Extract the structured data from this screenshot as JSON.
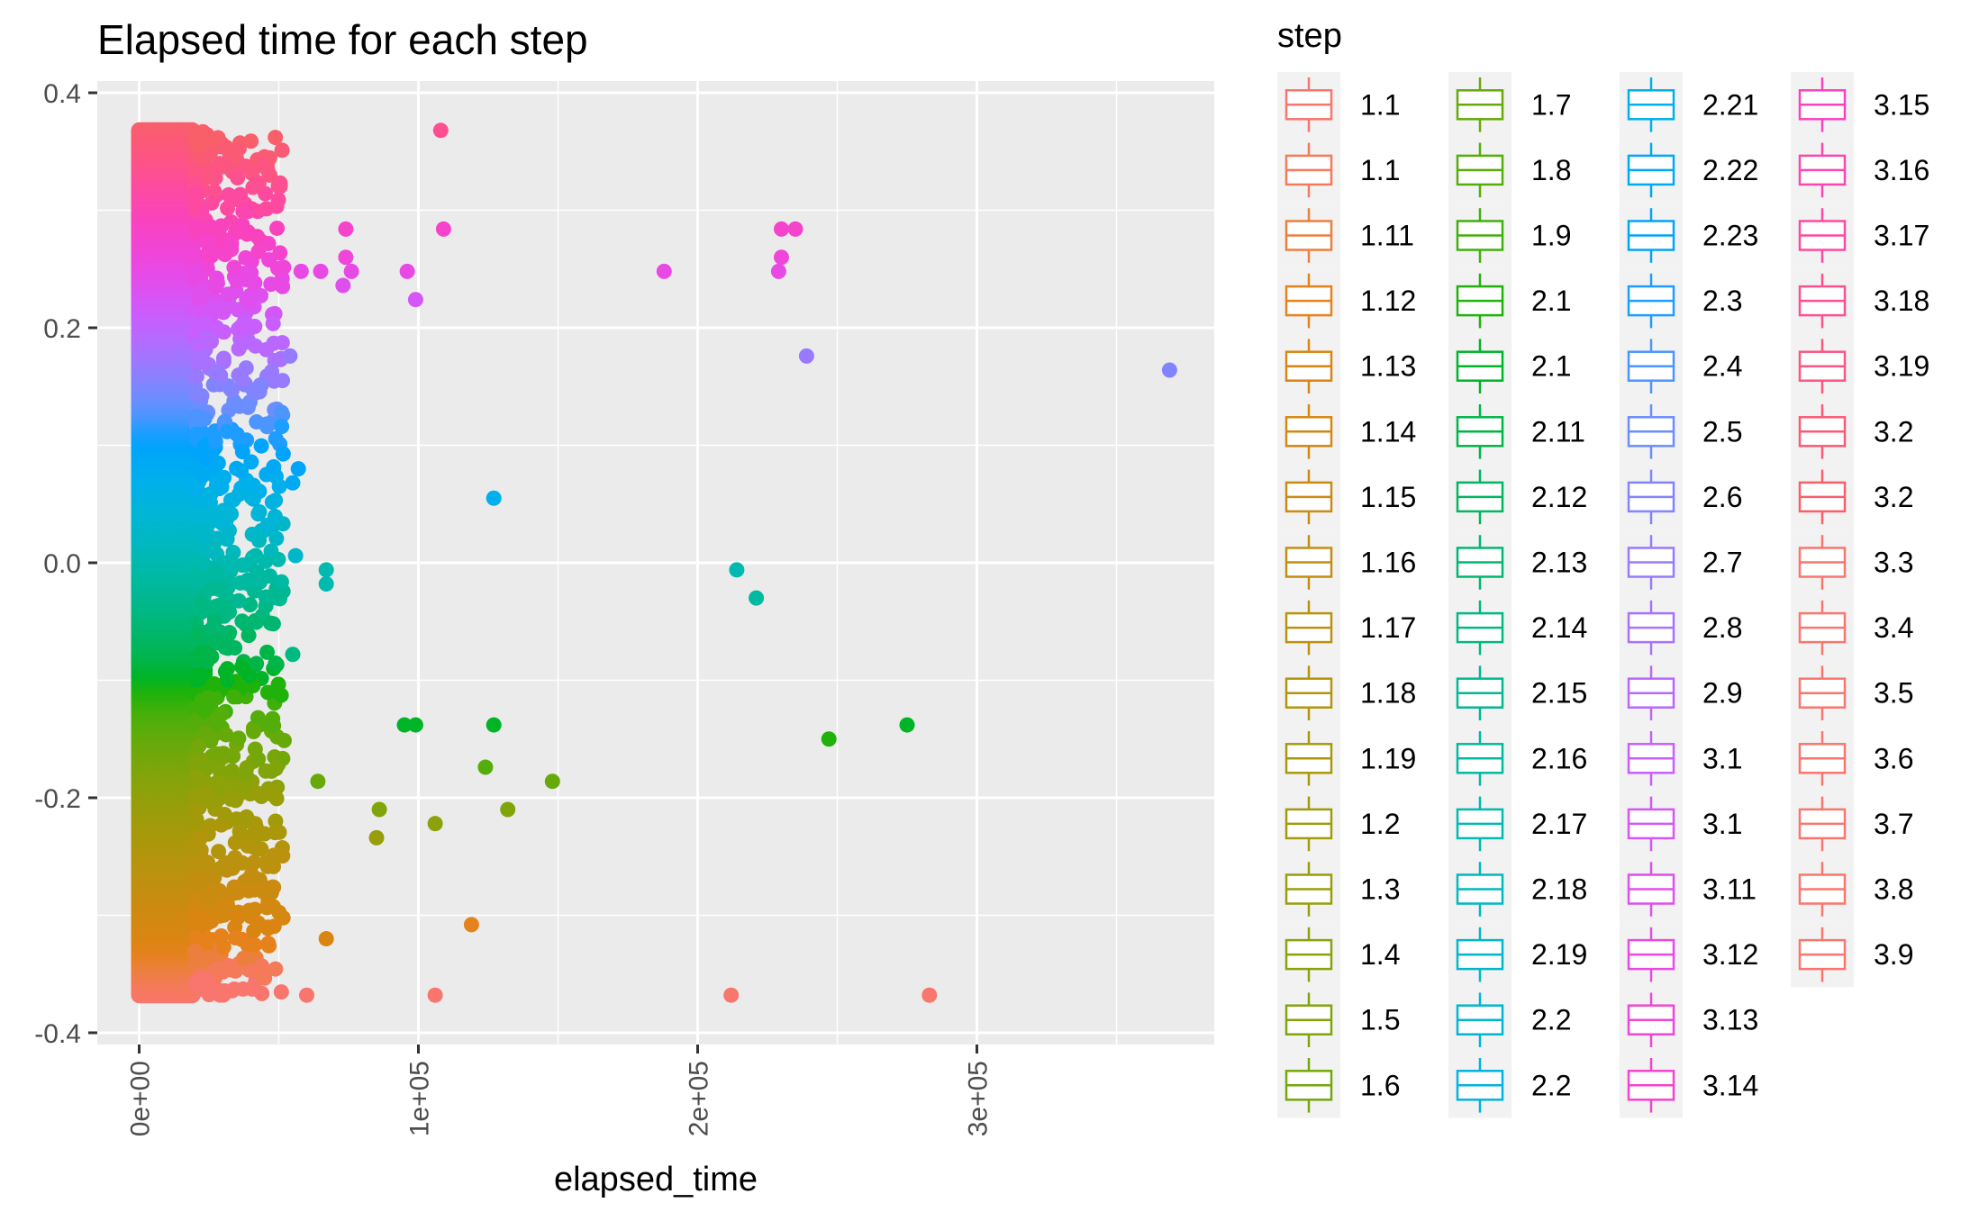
{
  "chart_data": {
    "type": "scatter",
    "title": "Elapsed time for each step",
    "xlabel": "elapsed_time",
    "ylabel": "",
    "xlim": [
      -15000,
      385000
    ],
    "ylim": [
      -0.41,
      0.41
    ],
    "x_ticks": [
      0,
      100000,
      200000,
      300000
    ],
    "x_tick_labels": [
      "0e+00",
      "1e+05",
      "2e+05",
      "3e+05"
    ],
    "y_ticks": [
      -0.4,
      -0.2,
      0.0,
      0.2,
      0.4
    ],
    "y_tick_labels": [
      "-0.4",
      "-0.2",
      "0.0",
      "0.2",
      "0.4"
    ],
    "y_range_of_dense_band": [
      -0.368,
      0.368
    ],
    "grid": true,
    "legend": {
      "title": "step",
      "placement": "right",
      "entries": [
        {
          "label": "1.1",
          "color": "#F8766D"
        },
        {
          "label": "1.1",
          "color": "#F47A5A"
        },
        {
          "label": "1.11",
          "color": "#EC7F3D"
        },
        {
          "label": "1.12",
          "color": "#E5821C"
        },
        {
          "label": "1.13",
          "color": "#DA8512"
        },
        {
          "label": "1.14",
          "color": "#D38811"
        },
        {
          "label": "1.15",
          "color": "#CB8B10"
        },
        {
          "label": "1.16",
          "color": "#C38E10"
        },
        {
          "label": "1.17",
          "color": "#BB920E"
        },
        {
          "label": "1.18",
          "color": "#B3950C"
        },
        {
          "label": "1.19",
          "color": "#AA980A"
        },
        {
          "label": "1.2",
          "color": "#A19B0A"
        },
        {
          "label": "1.3",
          "color": "#979E0A"
        },
        {
          "label": "1.4",
          "color": "#8CA10A"
        },
        {
          "label": "1.5",
          "color": "#81A40A"
        },
        {
          "label": "1.6",
          "color": "#74A70A"
        },
        {
          "label": "1.7",
          "color": "#66AA0A"
        },
        {
          "label": "1.8",
          "color": "#55AD0A"
        },
        {
          "label": "1.9",
          "color": "#3FB00A"
        },
        {
          "label": "2.1",
          "color": "#1FB20A"
        },
        {
          "label": "2.1",
          "color": "#00B428"
        },
        {
          "label": "2.11",
          "color": "#00B547"
        },
        {
          "label": "2.12",
          "color": "#00B65E"
        },
        {
          "label": "2.13",
          "color": "#00B771"
        },
        {
          "label": "2.14",
          "color": "#00B882"
        },
        {
          "label": "2.15",
          "color": "#00B892"
        },
        {
          "label": "2.16",
          "color": "#00B9A1"
        },
        {
          "label": "2.17",
          "color": "#00B9AF"
        },
        {
          "label": "2.18",
          "color": "#00B8BD"
        },
        {
          "label": "2.19",
          "color": "#00B7CA"
        },
        {
          "label": "2.2",
          "color": "#00B5D6"
        },
        {
          "label": "2.2",
          "color": "#00B2E1"
        },
        {
          "label": "2.21",
          "color": "#00AFEB"
        },
        {
          "label": "2.22",
          "color": "#00AAF3"
        },
        {
          "label": "2.23",
          "color": "#00A4FA"
        },
        {
          "label": "2.3",
          "color": "#1C9DFF"
        },
        {
          "label": "2.4",
          "color": "#4C95FF"
        },
        {
          "label": "2.5",
          "color": "#6A8DFF"
        },
        {
          "label": "2.6",
          "color": "#8284FF"
        },
        {
          "label": "2.7",
          "color": "#977AFF"
        },
        {
          "label": "2.8",
          "color": "#A971FF"
        },
        {
          "label": "2.9",
          "color": "#B967FF"
        },
        {
          "label": "3.1",
          "color": "#C75EFD"
        },
        {
          "label": "3.1",
          "color": "#D456F6"
        },
        {
          "label": "3.11",
          "color": "#DF4FEE"
        },
        {
          "label": "3.12",
          "color": "#E849E4"
        },
        {
          "label": "3.13",
          "color": "#EF45D8"
        },
        {
          "label": "3.14",
          "color": "#F543CC"
        },
        {
          "label": "3.15",
          "color": "#F943BE"
        },
        {
          "label": "3.16",
          "color": "#FC46AF"
        },
        {
          "label": "3.17",
          "color": "#FD4AA0"
        },
        {
          "label": "3.18",
          "color": "#FE5091"
        },
        {
          "label": "3.19",
          "color": "#FD5582"
        },
        {
          "label": "3.2",
          "color": "#FB5A75"
        },
        {
          "label": "3.2",
          "color": "#F85F69"
        },
        {
          "label": "3.3",
          "color": "#F8766D"
        },
        {
          "label": "3.4",
          "color": "#F8766D"
        },
        {
          "label": "3.5",
          "color": "#F8766D"
        },
        {
          "label": "3.6",
          "color": "#F8766D"
        },
        {
          "label": "3.7",
          "color": "#F8766D"
        },
        {
          "label": "3.8",
          "color": "#F8766D"
        },
        {
          "label": "3.9",
          "color": "#F8766D"
        }
      ]
    },
    "outliers": [
      {
        "x": 108000,
        "y": 0.368,
        "color": "#FE5091"
      },
      {
        "x": 109000,
        "y": 0.284,
        "color": "#F543CC"
      },
      {
        "x": 74000,
        "y": 0.284,
        "color": "#F543CC"
      },
      {
        "x": 230000,
        "y": 0.284,
        "color": "#F543CC"
      },
      {
        "x": 235000,
        "y": 0.284,
        "color": "#F543CC"
      },
      {
        "x": 74000,
        "y": 0.26,
        "color": "#EF45D8"
      },
      {
        "x": 230000,
        "y": 0.26,
        "color": "#EF45D8"
      },
      {
        "x": 58000,
        "y": 0.248,
        "color": "#E849E4"
      },
      {
        "x": 65000,
        "y": 0.248,
        "color": "#E849E4"
      },
      {
        "x": 76000,
        "y": 0.248,
        "color": "#E849E4"
      },
      {
        "x": 96000,
        "y": 0.248,
        "color": "#E849E4"
      },
      {
        "x": 188000,
        "y": 0.248,
        "color": "#E849E4"
      },
      {
        "x": 229000,
        "y": 0.248,
        "color": "#E849E4"
      },
      {
        "x": 73000,
        "y": 0.236,
        "color": "#DF4FEE"
      },
      {
        "x": 99000,
        "y": 0.224,
        "color": "#D456F6"
      },
      {
        "x": 54000,
        "y": 0.176,
        "color": "#977AFF"
      },
      {
        "x": 239000,
        "y": 0.176,
        "color": "#977AFF"
      },
      {
        "x": 369000,
        "y": 0.164,
        "color": "#8284FF"
      },
      {
        "x": 51000,
        "y": 0.128,
        "color": "#4C95FF"
      },
      {
        "x": 51000,
        "y": 0.116,
        "color": "#1C9DFF"
      },
      {
        "x": 57000,
        "y": 0.08,
        "color": "#00A4FA"
      },
      {
        "x": 55000,
        "y": 0.068,
        "color": "#00AAF3"
      },
      {
        "x": 127000,
        "y": 0.055,
        "color": "#00AFEB"
      },
      {
        "x": 46000,
        "y": 0.032,
        "color": "#00B5D6"
      },
      {
        "x": 56000,
        "y": 0.006,
        "color": "#00B7CA"
      },
      {
        "x": 67000,
        "y": -0.006,
        "color": "#00B9AF"
      },
      {
        "x": 67000,
        "y": -0.018,
        "color": "#00B9AF"
      },
      {
        "x": 214000,
        "y": -0.006,
        "color": "#00B9AF"
      },
      {
        "x": 221000,
        "y": -0.03,
        "color": "#00B9A1"
      },
      {
        "x": 55000,
        "y": -0.078,
        "color": "#00B882"
      },
      {
        "x": 95000,
        "y": -0.138,
        "color": "#00B428"
      },
      {
        "x": 99000,
        "y": -0.138,
        "color": "#00B428"
      },
      {
        "x": 127000,
        "y": -0.138,
        "color": "#00B428"
      },
      {
        "x": 275000,
        "y": -0.138,
        "color": "#00B428"
      },
      {
        "x": 247000,
        "y": -0.15,
        "color": "#1FB20A"
      },
      {
        "x": 124000,
        "y": -0.174,
        "color": "#55AD0A"
      },
      {
        "x": 148000,
        "y": -0.186,
        "color": "#66AA0A"
      },
      {
        "x": 64000,
        "y": -0.186,
        "color": "#66AA0A"
      },
      {
        "x": 86000,
        "y": -0.21,
        "color": "#81A40A"
      },
      {
        "x": 132000,
        "y": -0.21,
        "color": "#81A40A"
      },
      {
        "x": 106000,
        "y": -0.222,
        "color": "#8CA10A"
      },
      {
        "x": 85000,
        "y": -0.234,
        "color": "#979E0A"
      },
      {
        "x": 67000,
        "y": -0.32,
        "color": "#DA8512"
      },
      {
        "x": 119000,
        "y": -0.308,
        "color": "#E5821C"
      },
      {
        "x": 60000,
        "y": -0.368,
        "color": "#F8766D"
      },
      {
        "x": 106000,
        "y": -0.368,
        "color": "#F8766D"
      },
      {
        "x": 212000,
        "y": -0.368,
        "color": "#F8766D"
      },
      {
        "x": 283000,
        "y": -0.368,
        "color": "#F8766D"
      }
    ]
  }
}
